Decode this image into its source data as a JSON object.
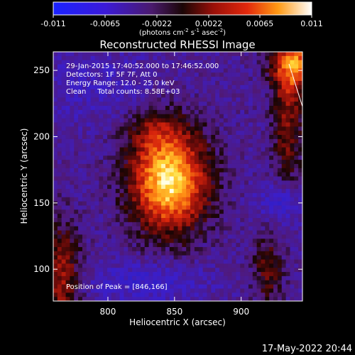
{
  "colorbar": {
    "ticks": [
      "-0.011",
      "-0.0065",
      "-0.0022",
      "0.0022",
      "0.0065",
      "0.011"
    ],
    "unit_main": "(photons cm",
    "unit_exp1": "-2",
    "unit_mid": " s",
    "unit_exp2": "-1",
    "unit_mid2": " asec",
    "unit_exp3": "-2",
    "unit_end": ")"
  },
  "chart_data": {
    "type": "heatmap",
    "title": "Reconstructed RHESSI Image",
    "xlabel": "Heliocentric X (arcsec)",
    "ylabel": "Heliocentric Y (arcsec)",
    "xlim": [
      759,
      946
    ],
    "ylim": [
      76,
      264
    ],
    "x_ticks": [
      "800",
      "850",
      "900"
    ],
    "y_ticks": [
      "100",
      "150",
      "200",
      "250"
    ],
    "colorbar_range": [
      -0.011,
      0.011
    ],
    "colormap": "black-blue-purple-red-orange-yellow-white",
    "peak_position": [
      846,
      166
    ],
    "annotations": [
      "29-Jan-2015 17:40:52.000 to 17:46:52.000",
      "Detectors: 1F 5F 7F, Att 0",
      "Energy Range: 12.0 - 25.0 keV",
      "Clean     Total counts: 8.58E+03"
    ],
    "peak_label": "Position of Peak = [846,166]"
  },
  "footer_date": "17-May-2022 20:44"
}
